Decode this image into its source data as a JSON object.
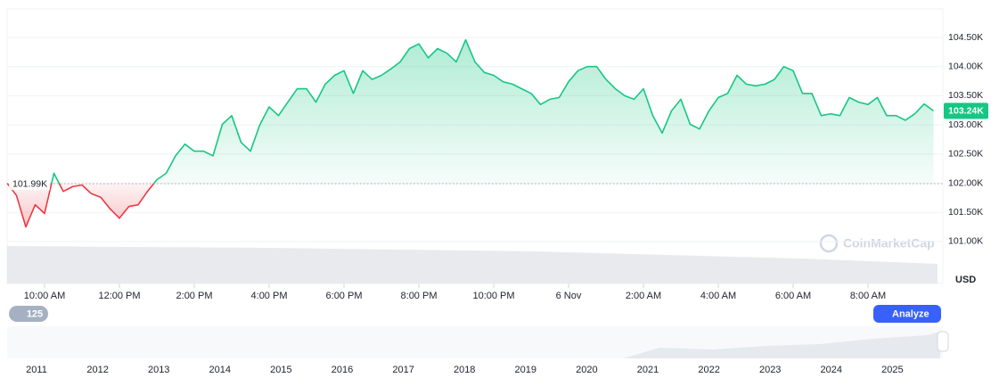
{
  "chart_data": {
    "type": "line",
    "series": [
      {
        "color": "#16c784",
        "values": [
          102.0,
          101.79,
          101.25,
          101.63,
          101.48,
          102.17,
          101.86,
          101.94,
          101.97,
          101.82,
          101.76,
          101.56,
          101.4,
          101.6,
          101.63,
          101.86,
          102.06,
          102.17,
          102.47,
          102.67,
          102.55,
          102.55,
          102.47,
          103.01,
          103.16,
          102.7,
          102.55,
          103.0,
          103.31,
          103.16,
          103.39,
          103.62,
          103.62,
          103.39,
          103.7,
          103.85,
          103.93,
          103.54,
          103.93,
          103.78,
          103.85,
          103.96,
          104.08,
          104.31,
          104.39,
          104.15,
          104.31,
          104.23,
          104.08,
          104.46,
          104.08,
          103.9,
          103.85,
          103.74,
          103.7,
          103.62,
          103.54,
          103.35,
          103.44,
          103.47,
          103.74,
          103.93,
          104.0,
          104.0,
          103.78,
          103.62,
          103.5,
          103.44,
          103.62,
          103.16,
          102.86,
          103.24,
          103.44,
          103.01,
          102.93,
          103.24,
          103.47,
          103.54,
          103.85,
          103.7,
          103.67,
          103.7,
          103.78,
          104.0,
          103.93,
          103.54,
          103.54,
          103.16,
          103.19,
          103.16,
          103.47,
          103.39,
          103.35,
          103.47,
          103.16,
          103.16,
          103.08,
          103.19,
          103.36,
          103.24
        ]
      }
    ],
    "negative_color": "#ea3943",
    "xlim": [
      0,
      100
    ],
    "xticks": [
      {
        "value": 4,
        "label": "10:00 AM"
      },
      {
        "value": 12,
        "label": "12:00 PM"
      },
      {
        "value": 20,
        "label": "2:00 PM"
      },
      {
        "value": 28,
        "label": "4:00 PM"
      },
      {
        "value": 36,
        "label": "6:00 PM"
      },
      {
        "value": 44,
        "label": "8:00 PM"
      },
      {
        "value": 52,
        "label": "10:00 PM"
      },
      {
        "value": 60,
        "label": "6 Nov"
      },
      {
        "value": 68,
        "label": "2:00 AM"
      },
      {
        "value": 76,
        "label": "4:00 AM"
      },
      {
        "value": 84,
        "label": "6:00 AM"
      },
      {
        "value": 92,
        "label": "8:00 AM"
      }
    ],
    "ylim": [
      100.28,
      104.99
    ],
    "yticks": [
      {
        "value": 101,
        "label": "101.00K"
      },
      {
        "value": 101.5,
        "label": "101.50K"
      },
      {
        "value": 102,
        "label": "102.00K"
      },
      {
        "value": 102.5,
        "label": "102.50K"
      },
      {
        "value": 103,
        "label": "103.00K"
      },
      {
        "value": 103.5,
        "label": "103.50K"
      },
      {
        "value": 104,
        "label": "104.00K"
      },
      {
        "value": 104.5,
        "label": "104.50K"
      }
    ],
    "y_unit": "USD",
    "reference": {
      "value": 101.99,
      "label": "101.99K"
    },
    "last_price": {
      "value": 103.24,
      "label": "103.24K"
    },
    "grid": true
  },
  "ui": {
    "badge": "125",
    "analyze": "Analyze",
    "watermark": "CoinMarketCap",
    "navigator_years": [
      "2011",
      "2012",
      "2013",
      "2014",
      "2015",
      "2016",
      "2017",
      "2018",
      "2019",
      "2020",
      "2021",
      "2022",
      "2023",
      "2024",
      "2025"
    ]
  }
}
